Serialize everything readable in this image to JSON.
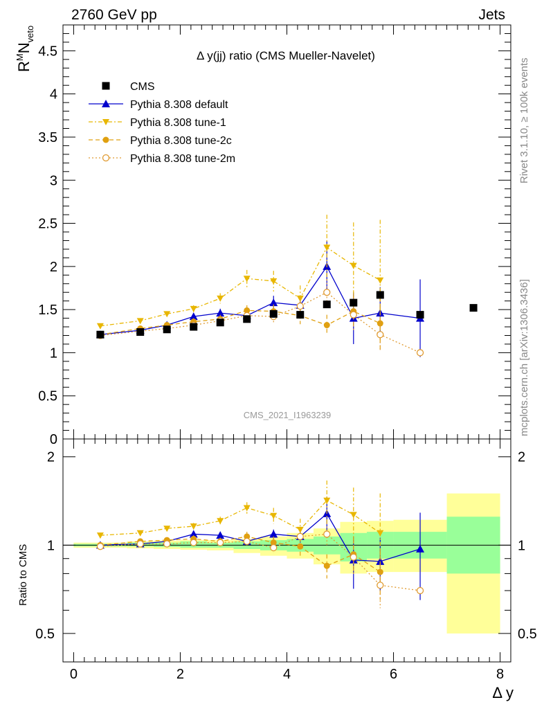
{
  "header": {
    "left": "2760 GeV pp",
    "right": "Jets"
  },
  "side_labels": {
    "rivet": "Rivet 3.1.10, ≥ 100k events",
    "mcplots": "mcplots.cern.ch [arXiv:1306.3436]"
  },
  "watermark": "CMS_2021_I1963239",
  "chart_data": [
    {
      "type": "line",
      "title": "Δ y(jj) ratio (CMS Mueller-Navelet)",
      "ylabel": "R^M N_veto",
      "xlim": [
        -0.2,
        8.2
      ],
      "ylim": [
        0,
        4.8
      ],
      "yticks": [
        "0",
        "0.5",
        "1",
        "1.5",
        "2",
        "2.5",
        "3",
        "3.5",
        "4",
        "4.5"
      ],
      "legend_position": "top-left",
      "data": {
        "name": "CMS",
        "color": "#000000",
        "x": [
          0.5,
          1.25,
          1.75,
          2.25,
          2.75,
          3.25,
          3.75,
          4.25,
          4.75,
          5.25,
          5.75,
          6.5,
          7.5
        ],
        "y": [
          1.21,
          1.24,
          1.27,
          1.3,
          1.35,
          1.39,
          1.45,
          1.44,
          1.56,
          1.58,
          1.67,
          1.44,
          1.52
        ]
      },
      "series": [
        {
          "name": "Pythia 8.308 default",
          "color": "#0000cc",
          "marker": "triangle-up",
          "line": "solid",
          "x": [
            0.5,
            1.25,
            1.75,
            2.25,
            2.75,
            3.25,
            3.75,
            4.25,
            4.75,
            5.25,
            5.75,
            6.5
          ],
          "y": [
            1.21,
            1.26,
            1.32,
            1.42,
            1.46,
            1.43,
            1.58,
            1.55,
            2.0,
            1.4,
            1.46,
            1.4
          ],
          "err": [
            0.02,
            0.02,
            0.03,
            0.04,
            0.05,
            0.05,
            0.08,
            0.08,
            0.3,
            0.3,
            0.3,
            0.45
          ]
        },
        {
          "name": "Pythia 8.308 tune-1",
          "color": "#e8b600",
          "marker": "triangle-down",
          "line": "dash-dot",
          "x": [
            0.5,
            1.25,
            1.75,
            2.25,
            2.75,
            3.25,
            3.75,
            4.25,
            4.75,
            5.25,
            5.75
          ],
          "y": [
            1.31,
            1.37,
            1.45,
            1.51,
            1.63,
            1.86,
            1.83,
            1.63,
            2.22,
            2.01,
            1.84
          ],
          "err": [
            0.02,
            0.02,
            0.03,
            0.04,
            0.06,
            0.1,
            0.12,
            0.15,
            0.38,
            0.5,
            0.7
          ]
        },
        {
          "name": "Pythia 8.308 tune-2c",
          "color": "#e0a010",
          "marker": "circle",
          "line": "dashed",
          "x": [
            0.5,
            1.25,
            1.75,
            2.25,
            2.75,
            3.25,
            3.75,
            4.25,
            4.75,
            5.25,
            5.75
          ],
          "y": [
            1.21,
            1.28,
            1.32,
            1.36,
            1.39,
            1.49,
            1.48,
            1.43,
            1.32,
            1.48,
            1.34
          ],
          "err": [
            0.02,
            0.02,
            0.03,
            0.04,
            0.05,
            0.06,
            0.08,
            0.1,
            0.12,
            0.2,
            0.3
          ]
        },
        {
          "name": "Pythia 8.308 tune-2m",
          "color": "#e09a30",
          "marker": "open-circle",
          "line": "dotted",
          "x": [
            0.5,
            1.25,
            1.75,
            2.25,
            2.75,
            3.25,
            3.75,
            4.25,
            4.75,
            5.25,
            5.75,
            6.5
          ],
          "y": [
            1.2,
            1.25,
            1.28,
            1.32,
            1.37,
            1.43,
            1.42,
            1.54,
            1.7,
            1.44,
            1.21,
            1.0
          ],
          "err": [
            0.02,
            0.02,
            0.03,
            0.04,
            0.05,
            0.05,
            0.07,
            0.1,
            0.15,
            0.2,
            0.2,
            0.0
          ]
        }
      ]
    },
    {
      "type": "line",
      "ylabel": "Ratio to CMS",
      "xlabel": "Δ y",
      "xlim": [
        -0.2,
        8.2
      ],
      "ylim": [
        0.4,
        2.3
      ],
      "log_y": true,
      "yticks": [
        "0.5",
        "1",
        "2"
      ],
      "xticks": [
        "0",
        "2",
        "4",
        "6",
        "8"
      ],
      "bands": {
        "edges": [
          0,
          1,
          1.5,
          2,
          2.5,
          3,
          3.5,
          4,
          4.5,
          5,
          5.5,
          6,
          7,
          8
        ],
        "inner": [
          [
            0.99,
            1.01
          ],
          [
            0.99,
            1.02
          ],
          [
            0.985,
            1.02
          ],
          [
            0.98,
            1.03
          ],
          [
            0.98,
            1.02
          ],
          [
            0.97,
            1.03
          ],
          [
            0.96,
            1.04
          ],
          [
            0.95,
            1.05
          ],
          [
            0.93,
            1.07
          ],
          [
            0.88,
            1.1
          ],
          [
            0.9,
            1.11
          ],
          [
            0.9,
            1.11
          ],
          [
            0.8,
            1.25
          ]
        ],
        "outer": [
          [
            0.98,
            1.02
          ],
          [
            0.975,
            1.03
          ],
          [
            0.97,
            1.035
          ],
          [
            0.965,
            1.04
          ],
          [
            0.96,
            1.04
          ],
          [
            0.94,
            1.05
          ],
          [
            0.92,
            1.07
          ],
          [
            0.9,
            1.1
          ],
          [
            0.86,
            1.14
          ],
          [
            0.8,
            1.2
          ],
          [
            0.81,
            1.21
          ],
          [
            0.81,
            1.22
          ],
          [
            0.5,
            1.5
          ]
        ]
      },
      "series": [
        {
          "name": "Pythia 8.308 default",
          "x": [
            0.5,
            1.25,
            1.75,
            2.25,
            2.75,
            3.25,
            3.75,
            4.25,
            4.75,
            5.25,
            5.75,
            6.5
          ],
          "y": [
            1.0,
            1.01,
            1.03,
            1.09,
            1.08,
            1.03,
            1.09,
            1.07,
            1.28,
            0.89,
            0.88,
            0.97
          ],
          "err": [
            0.02,
            0.02,
            0.02,
            0.03,
            0.03,
            0.03,
            0.04,
            0.05,
            0.18,
            0.18,
            0.18,
            0.32
          ]
        },
        {
          "name": "Pythia 8.308 tune-1",
          "x": [
            0.5,
            1.25,
            1.75,
            2.25,
            2.75,
            3.25,
            3.75,
            4.25,
            4.75,
            5.25,
            5.75
          ],
          "y": [
            1.08,
            1.1,
            1.14,
            1.16,
            1.21,
            1.34,
            1.26,
            1.13,
            1.42,
            1.27,
            1.1
          ],
          "err": [
            0.02,
            0.02,
            0.02,
            0.03,
            0.04,
            0.06,
            0.08,
            0.1,
            0.24,
            0.3,
            0.4
          ]
        },
        {
          "name": "Pythia 8.308 tune-2c",
          "x": [
            0.5,
            1.25,
            1.75,
            2.25,
            2.75,
            3.25,
            3.75,
            4.25,
            4.75,
            5.25,
            5.75
          ],
          "y": [
            1.0,
            1.03,
            1.04,
            1.05,
            1.03,
            1.07,
            1.02,
            0.99,
            0.85,
            0.93,
            0.81
          ],
          "err": [
            0.02,
            0.02,
            0.02,
            0.03,
            0.03,
            0.04,
            0.05,
            0.07,
            0.08,
            0.12,
            0.16
          ]
        },
        {
          "name": "Pythia 8.308 tune-2m",
          "x": [
            0.5,
            1.25,
            1.75,
            2.25,
            2.75,
            3.25,
            3.75,
            4.25,
            4.75,
            5.25,
            5.75,
            6.5
          ],
          "y": [
            0.99,
            1.01,
            1.01,
            1.02,
            1.02,
            1.03,
            0.98,
            1.07,
            1.09,
            0.91,
            0.73,
            0.7
          ],
          "err": [
            0.02,
            0.02,
            0.02,
            0.03,
            0.03,
            0.03,
            0.04,
            0.06,
            0.1,
            0.12,
            0.12,
            0.0
          ]
        }
      ]
    }
  ]
}
